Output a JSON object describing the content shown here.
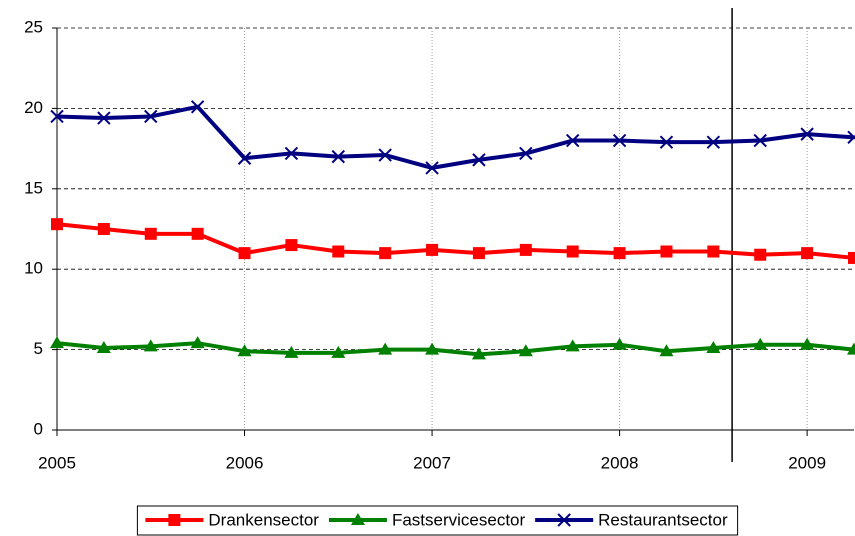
{
  "chart_data": {
    "type": "line",
    "x": [
      2005,
      2005.25,
      2005.5,
      2005.75,
      2006,
      2006.25,
      2006.5,
      2006.75,
      2007,
      2007.25,
      2007.5,
      2007.75,
      2008,
      2008.25,
      2008.5,
      2008.75,
      2009,
      2009.25
    ],
    "series": [
      {
        "name": "Drankensector",
        "color": "#ff0000",
        "marker": "square",
        "values": [
          12.8,
          12.5,
          12.2,
          12.2,
          11.0,
          11.5,
          11.1,
          11.0,
          11.2,
          11.0,
          11.2,
          11.1,
          11.0,
          11.1,
          11.1,
          10.9,
          11.0,
          10.7
        ]
      },
      {
        "name": "Fastservicesector",
        "color": "#008000",
        "marker": "triangle",
        "values": [
          5.4,
          5.1,
          5.2,
          5.4,
          4.9,
          4.8,
          4.8,
          5.0,
          5.0,
          4.7,
          4.9,
          5.2,
          5.3,
          4.9,
          5.1,
          5.3,
          5.3,
          5.0
        ]
      },
      {
        "name": "Restaurantsector",
        "color": "#000080",
        "marker": "x",
        "values": [
          19.5,
          19.4,
          19.5,
          20.1,
          16.9,
          17.2,
          17.0,
          17.1,
          16.3,
          16.8,
          17.2,
          18.0,
          18.0,
          17.9,
          17.9,
          18.0,
          18.4,
          18.2
        ]
      }
    ],
    "xlim": [
      2005,
      2009.25
    ],
    "xticks": [
      2005,
      2006,
      2007,
      2008,
      2009
    ],
    "ylim": [
      0,
      25
    ],
    "yticks": [
      0,
      5,
      10,
      15,
      20,
      25
    ],
    "vline_x": 2008.6,
    "grid": true,
    "legend": "bottom"
  }
}
